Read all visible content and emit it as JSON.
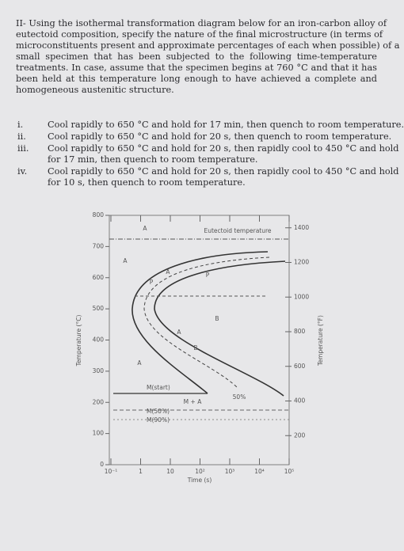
{
  "problem": {
    "intro_lines": [
      "II- Using the isothermal transformation diagram below for an iron-carbon alloy of",
      "eutectoid composition, specify the nature of the final microstructure (in terms of",
      "microconstituents present and approximate percentages of each when possible) of a",
      "small specimen that has been subjected to the following time-temperature",
      "treatments. In case, assume that the specimen begins at 760 °C and that it has",
      "been held at this temperature long enough to have achieved a complete and",
      "homogeneous austenitic structure."
    ],
    "items": [
      {
        "numeral": "i.",
        "lines": [
          "Cool rapidly to 650 °C and hold for 17 min, then quench to room temperature."
        ]
      },
      {
        "numeral": "ii.",
        "lines": [
          "Cool rapidly to 650 °C and hold for 20 s, then quench to room temperature."
        ]
      },
      {
        "numeral": "iii.",
        "lines": [
          "Cool rapidly to 650 °C and hold for 20 s, then rapidly cool to 450 °C and hold",
          "for 17 min, then quench to room temperature."
        ]
      },
      {
        "numeral": "iv.",
        "lines": [
          "Cool rapidly to 650 °C and hold for 20 s, then rapidly cool to 450 °C and hold",
          "for 10 s, then quench to room temperature."
        ]
      }
    ]
  },
  "chart_data": {
    "type": "line",
    "ylabel": "Temperature (°C)",
    "y2label": "Temperature (°F)",
    "xlabel": "Time (s)",
    "xscale": "log",
    "xlim": [
      0.1,
      100000
    ],
    "xticks": [
      {
        "value": 0.1,
        "label": "10⁻¹"
      },
      1,
      10,
      {
        "value": 100,
        "label": "10²"
      },
      {
        "value": 1000,
        "label": "10³"
      },
      {
        "value": 10000,
        "label": "10⁴"
      },
      {
        "value": 100000,
        "label": "10⁵"
      }
    ],
    "ylim": [
      0,
      800
    ],
    "yticks": [
      0,
      100,
      200,
      300,
      400,
      500,
      600,
      700,
      800
    ],
    "y2lim": [
      32,
      1472
    ],
    "y2ticks": [
      200,
      400,
      600,
      800,
      1000,
      1200,
      1400
    ],
    "annotations": [
      "A",
      "Eutectoid temperature",
      "A",
      "P",
      "A",
      "P",
      "B",
      "A",
      "B",
      "A",
      "M(start)",
      "M + A",
      "50%",
      "M(50%)",
      "M(90%)"
    ]
  }
}
